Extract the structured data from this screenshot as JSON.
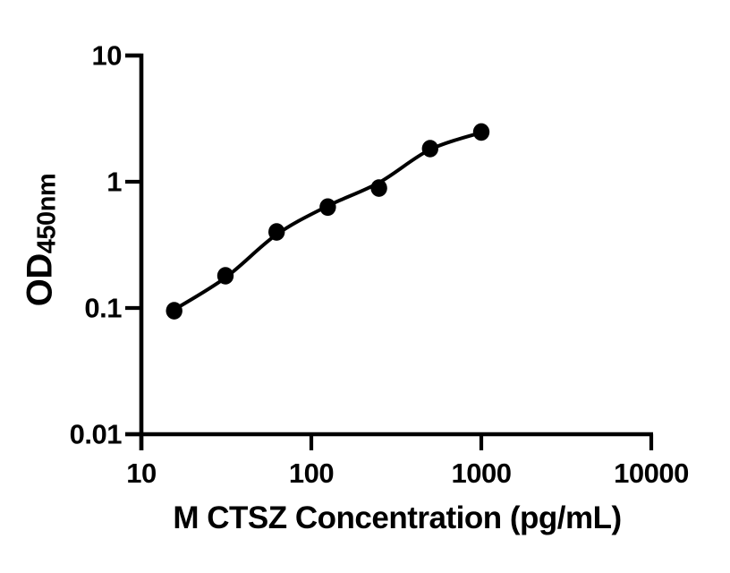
{
  "figure": {
    "background": "#ffffff",
    "ink_color": "#000000"
  },
  "chart_data": {
    "type": "scatter",
    "title": "",
    "xlabel": "M CTSZ Concentration (pg/mL)",
    "ylabel_main": "OD",
    "ylabel_sub": "450nm",
    "x_scale": "log10",
    "y_scale": "log10",
    "xlim": [
      10,
      10000
    ],
    "ylim": [
      0.01,
      10
    ],
    "grid": false,
    "legend": false,
    "x_tick_values": [
      10,
      100,
      1000,
      10000
    ],
    "x_tick_labels": [
      "10",
      "100",
      "1000",
      "10000"
    ],
    "y_tick_values": [
      0.01,
      0.1,
      1,
      10
    ],
    "y_tick_labels": [
      "0.01",
      "0.1",
      "1",
      "10"
    ],
    "series": [
      {
        "marker": "filled-circle",
        "color": "#000000",
        "x": [
          15.6,
          31.25,
          62.5,
          125,
          250,
          500,
          1000
        ],
        "y": [
          0.095,
          0.18,
          0.4,
          0.63,
          0.89,
          1.83,
          2.48
        ]
      }
    ],
    "fit_curve": {
      "style": "smooth-line",
      "color": "#000000",
      "x": [
        15.6,
        31.25,
        62.5,
        125,
        250,
        500,
        1000
      ],
      "y": [
        0.097,
        0.174,
        0.382,
        0.643,
        0.984,
        1.8,
        2.455
      ]
    }
  }
}
